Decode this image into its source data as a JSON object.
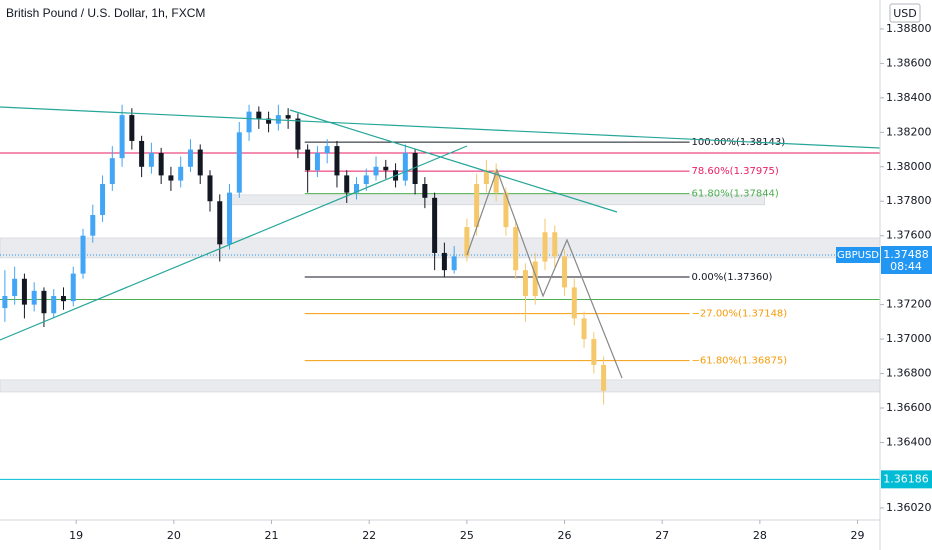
{
  "chart_data": {
    "type": "candlestick",
    "title": "British Pound / U.S. Dollar, 1h, FXCM",
    "currency": "USD",
    "xlim": [
      18.22,
      27.23
    ],
    "ylim": [
      1.3595,
      1.38968
    ],
    "xticks": [
      19,
      20,
      21,
      22,
      {
        "value": 23,
        "label": "25"
      },
      {
        "value": 24,
        "label": "26"
      },
      {
        "value": 25,
        "label": "27"
      },
      {
        "value": 26,
        "label": "28"
      },
      {
        "value": 27,
        "label": "29"
      }
    ],
    "yticks": [
      {
        "value": 1.388,
        "label": "1.38800"
      },
      {
        "value": 1.386,
        "label": "1.38600"
      },
      {
        "value": 1.384,
        "label": "1.38400"
      },
      {
        "value": 1.382,
        "label": "1.38200"
      },
      {
        "value": 1.38,
        "label": "1.38000"
      },
      {
        "value": 1.378,
        "label": "1.37800"
      },
      {
        "value": 1.376,
        "label": "1.37600"
      },
      {
        "value": 1.372,
        "label": "1.37200"
      },
      {
        "value": 1.37,
        "label": "1.37000"
      },
      {
        "value": 1.368,
        "label": "1.36800"
      },
      {
        "value": 1.366,
        "label": "1.36600"
      },
      {
        "value": 1.364,
        "label": "1.36400"
      },
      {
        "value": 1.3602,
        "label": "1.36020"
      }
    ],
    "series": [
      {
        "up_color": "#42a5f5",
        "down_color": "#131722",
        "x": [
          18.27,
          18.37,
          18.47,
          18.57,
          18.67,
          18.77,
          18.87,
          18.97,
          19.07,
          19.17,
          19.27,
          19.37,
          19.47,
          19.57,
          19.67,
          19.77,
          19.87,
          19.97,
          20.07,
          20.17,
          20.27,
          20.37,
          20.47,
          20.57,
          20.67,
          20.77,
          20.87,
          20.97,
          21.07,
          21.17,
          21.27,
          21.37,
          21.47,
          21.57,
          21.67,
          21.77,
          21.87,
          21.97,
          22.07,
          22.17,
          22.27,
          22.37,
          22.47,
          22.57,
          22.67,
          22.77,
          22.87
        ],
        "open": [
          1.3718,
          1.3725,
          1.3735,
          1.372,
          1.3728,
          1.3715,
          1.3725,
          1.3722,
          1.3738,
          1.376,
          1.3772,
          1.379,
          1.3805,
          1.383,
          1.3815,
          1.38,
          1.3808,
          1.3795,
          1.3792,
          1.38,
          1.381,
          1.3795,
          1.378,
          1.3755,
          1.3785,
          1.382,
          1.3832,
          1.3828,
          1.3825,
          1.383,
          1.3828,
          1.381,
          1.3798,
          1.3808,
          1.3812,
          1.3795,
          1.3785,
          1.379,
          1.3795,
          1.38,
          1.3798,
          1.3792,
          1.3808,
          1.379,
          1.3782,
          1.375,
          1.374
        ],
        "high": [
          1.374,
          1.3742,
          1.3738,
          1.3733,
          1.373,
          1.3729,
          1.373,
          1.3742,
          1.3764,
          1.3778,
          1.3795,
          1.3812,
          1.3836,
          1.3834,
          1.3818,
          1.3814,
          1.3811,
          1.38,
          1.3806,
          1.3816,
          1.3813,
          1.3798,
          1.3784,
          1.379,
          1.3826,
          1.3836,
          1.3835,
          1.3832,
          1.3836,
          1.3834,
          1.3831,
          1.3813,
          1.3812,
          1.3816,
          1.3815,
          1.3798,
          1.3794,
          1.3799,
          1.3806,
          1.3804,
          1.3802,
          1.3813,
          1.381,
          1.3794,
          1.3785,
          1.3756,
          1.3754
        ],
        "low": [
          1.371,
          1.372,
          1.3712,
          1.3716,
          1.3707,
          1.3712,
          1.3717,
          1.3719,
          1.3735,
          1.3756,
          1.3768,
          1.3786,
          1.38,
          1.381,
          1.3794,
          1.3796,
          1.379,
          1.3786,
          1.3788,
          1.3797,
          1.379,
          1.3774,
          1.3745,
          1.3752,
          1.3782,
          1.3815,
          1.3822,
          1.382,
          1.3821,
          1.3822,
          1.3805,
          1.3785,
          1.3794,
          1.3802,
          1.3788,
          1.3779,
          1.3781,
          1.3786,
          1.3792,
          1.3793,
          1.3788,
          1.3789,
          1.3784,
          1.3776,
          1.374,
          1.3736,
          1.3738
        ],
        "close": [
          1.3725,
          1.3735,
          1.372,
          1.3728,
          1.3715,
          1.3725,
          1.3722,
          1.3738,
          1.376,
          1.3772,
          1.379,
          1.3805,
          1.383,
          1.3815,
          1.38,
          1.3808,
          1.3795,
          1.3792,
          1.38,
          1.381,
          1.3795,
          1.378,
          1.3755,
          1.3785,
          1.382,
          1.3832,
          1.3828,
          1.3825,
          1.383,
          1.3828,
          1.381,
          1.3798,
          1.3808,
          1.3812,
          1.3795,
          1.3785,
          1.379,
          1.3795,
          1.38,
          1.3798,
          1.3792,
          1.3808,
          1.379,
          1.3782,
          1.375,
          1.374,
          1.3748
        ]
      },
      {
        "up_color": "#f5c86b",
        "down_color": "#f5c86b",
        "x": [
          23.0,
          23.1,
          23.2,
          23.3,
          23.4,
          23.5,
          23.6,
          23.7,
          23.8,
          23.9,
          24.0,
          24.1,
          24.2,
          24.3,
          24.4
        ],
        "open": [
          1.3748,
          1.3765,
          1.379,
          1.3798,
          1.3785,
          1.3765,
          1.374,
          1.3725,
          1.3745,
          1.3762,
          1.3748,
          1.373,
          1.3712,
          1.37,
          1.3685
        ],
        "high": [
          1.377,
          1.3796,
          1.3804,
          1.3802,
          1.3788,
          1.3768,
          1.3744,
          1.375,
          1.377,
          1.3766,
          1.3752,
          1.3735,
          1.3716,
          1.3704,
          1.369
        ],
        "low": [
          1.3745,
          1.376,
          1.3785,
          1.378,
          1.376,
          1.3735,
          1.371,
          1.372,
          1.374,
          1.3742,
          1.3725,
          1.3708,
          1.3695,
          1.368,
          1.3662
        ],
        "close": [
          1.3765,
          1.379,
          1.3798,
          1.3785,
          1.3765,
          1.374,
          1.3725,
          1.3745,
          1.3762,
          1.3748,
          1.373,
          1.3712,
          1.37,
          1.3685,
          1.367
        ]
      }
    ],
    "zones": [
      {
        "from": 1.37587,
        "to": 1.37471,
        "start": 18.22,
        "end": 27.23
      },
      {
        "from": 1.37837,
        "to": 1.37779,
        "start": 20.57,
        "end": 26.05
      },
      {
        "from": 1.36763,
        "to": 1.36693,
        "start": 18.22,
        "end": 27.23
      }
    ],
    "hlines": [
      {
        "price": 1.3808,
        "color": "#e91e63"
      },
      {
        "price": 1.3723,
        "color": "#4caf50"
      },
      {
        "price": 1.36186,
        "color": "#00bcd4",
        "label": "1.36186"
      }
    ],
    "fib": {
      "start": 21.34,
      "end": 25.28,
      "levels": [
        {
          "label": "100.00%(1.38143)",
          "price": 1.38143,
          "color": "#131722"
        },
        {
          "label": "78.60%(1.37975)",
          "price": 1.37975,
          "color": "#e91e63"
        },
        {
          "label": "61.80%(1.37844)",
          "price": 1.37844,
          "color": "#4caf50"
        },
        {
          "label": "0.00%(1.37360)",
          "price": 1.3736,
          "color": "#131722"
        },
        {
          "label": "−27.00%(1.37148)",
          "price": 1.37148,
          "color": "#f59c0a"
        },
        {
          "label": "−61.80%(1.36875)",
          "price": 1.36875,
          "color": "#f59c0a"
        }
      ]
    },
    "last_price": {
      "symbol": "GBPUSD",
      "value": 1.37488,
      "label": "1.37488",
      "countdown": "08:44",
      "color": "#2196f3"
    }
  }
}
